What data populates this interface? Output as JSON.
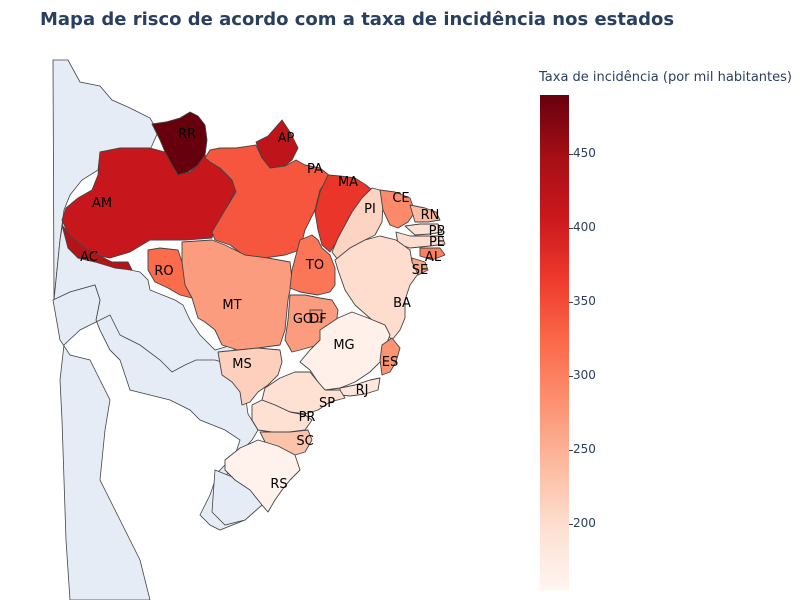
{
  "title": "Mapa de risco de acordo com a taxa de incidência nos estados",
  "colorbar": {
    "title": "Taxa de incidência (por mil habitantes)",
    "min": 155,
    "max": 490,
    "ticks": [
      200,
      250,
      300,
      350,
      400,
      450
    ],
    "tick_labels": [
      "200",
      "250",
      "300",
      "350",
      "400",
      "450"
    ],
    "colorscale": "Reds"
  },
  "map_colors": {
    "land": "#e5ecf6",
    "border": "#444444"
  },
  "states": [
    {
      "code": "RR",
      "rate": 490
    },
    {
      "code": "AM",
      "rate": 410
    },
    {
      "code": "AC",
      "rate": 430
    },
    {
      "code": "AP",
      "rate": 420
    },
    {
      "code": "PA",
      "rate": 340
    },
    {
      "code": "MA",
      "rate": 370
    },
    {
      "code": "RO",
      "rate": 320
    },
    {
      "code": "MT",
      "rate": 270
    },
    {
      "code": "TO",
      "rate": 310
    },
    {
      "code": "PI",
      "rate": 210
    },
    {
      "code": "CE",
      "rate": 290
    },
    {
      "code": "RN",
      "rate": 240
    },
    {
      "code": "PB",
      "rate": 195
    },
    {
      "code": "PE",
      "rate": 200
    },
    {
      "code": "AL",
      "rate": 300
    },
    {
      "code": "SE",
      "rate": 260
    },
    {
      "code": "BA",
      "rate": 200
    },
    {
      "code": "GO",
      "rate": 270
    },
    {
      "code": "DF",
      "rate": 280
    },
    {
      "code": "MG",
      "rate": 165
    },
    {
      "code": "MS",
      "rate": 215
    },
    {
      "code": "ES",
      "rate": 280
    },
    {
      "code": "RJ",
      "rate": 185
    },
    {
      "code": "SP",
      "rate": 195
    },
    {
      "code": "PR",
      "rate": 195
    },
    {
      "code": "SC",
      "rate": 230
    },
    {
      "code": "RS",
      "rate": 160
    }
  ]
}
